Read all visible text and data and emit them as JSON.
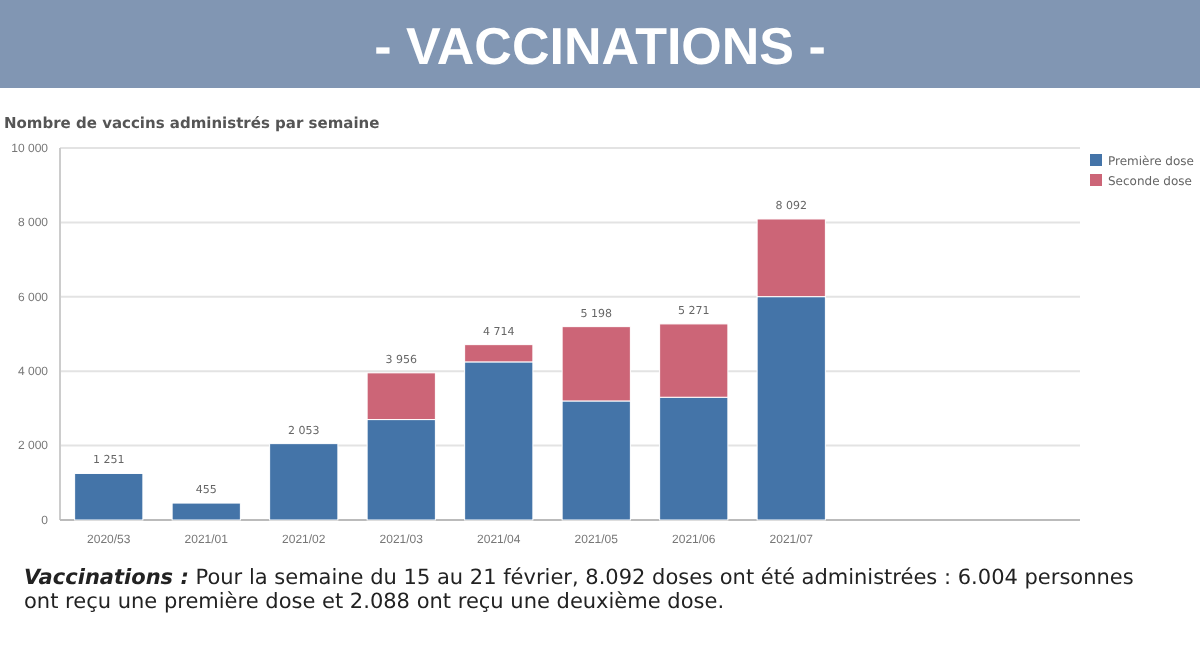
{
  "chart_data": {
    "type": "bar",
    "title": "- VACCINATIONS -",
    "subtitle": "Nombre de vaccins administrés par semaine",
    "categories": [
      "2020/53",
      "2021/01",
      "2021/02",
      "2021/03",
      "2021/04",
      "2021/05",
      "2021/06",
      "2021/07"
    ],
    "series": [
      {
        "name": "Première dose",
        "color": "#4474a8",
        "values": [
          1251,
          455,
          2053,
          2700,
          4250,
          3200,
          3300,
          6004
        ]
      },
      {
        "name": "Seconde dose",
        "color": "#cc6577",
        "values": [
          0,
          0,
          0,
          1256,
          464,
          1998,
          1971,
          2088
        ]
      }
    ],
    "stacked": true,
    "totals": [
      "1 251",
      "455",
      "2 053",
      "3 956",
      "4 714",
      "5 198",
      "5 271",
      "8 092"
    ],
    "ylim": [
      0,
      10000
    ],
    "yticks": [
      {
        "value": 0,
        "label": "0"
      },
      {
        "value": 2000,
        "label": "2 000"
      },
      {
        "value": 4000,
        "label": "4 000"
      },
      {
        "value": 6000,
        "label": "6 000"
      },
      {
        "value": 8000,
        "label": "8 000"
      },
      {
        "value": 10000,
        "label": "10 000"
      }
    ],
    "grid": "y",
    "legend": "top right",
    "annotations": [
      "Vaccinations : Pour la semaine du 15 au 21 février, 8.092 doses ont été administrées : 6.004 personnes ont reçu une première dose et 2.088 ont reçu une deuxième dose."
    ]
  }
}
